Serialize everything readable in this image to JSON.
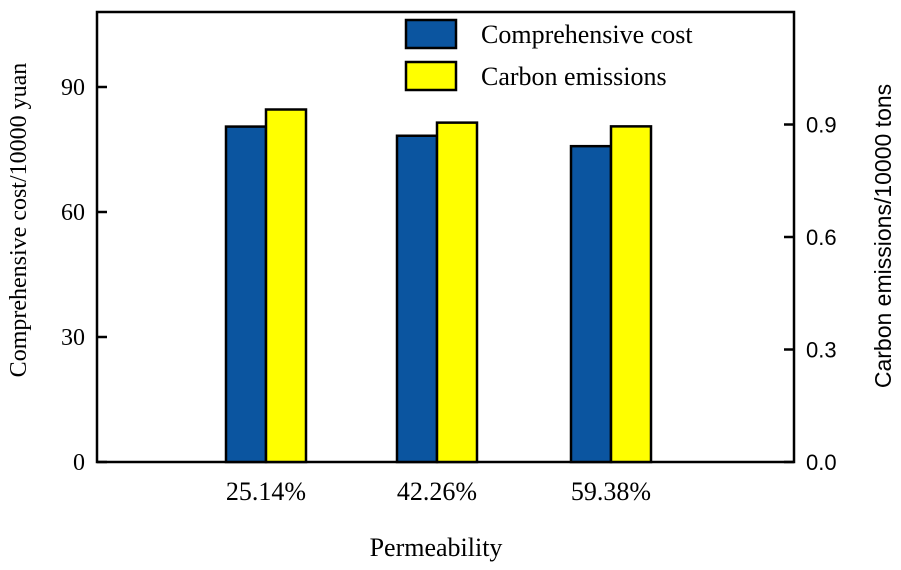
{
  "chart_data": {
    "type": "bar",
    "categories": [
      "25.14%",
      "42.26%",
      "59.38%"
    ],
    "xlabel": "Permeability",
    "ylabel_left": "Comprehensive cost/10000 yuan",
    "ylabel_right": "Carbon emissions/10000 tons",
    "ylim_left": [
      0,
      108
    ],
    "ylim_right": [
      0.0,
      1.2
    ],
    "yticks_left": [
      "0",
      "30",
      "60",
      "90"
    ],
    "yticks_right": [
      "0.0",
      "0.3",
      "0.6",
      "0.9"
    ],
    "yticks_left_values": [
      0,
      30,
      60,
      90
    ],
    "yticks_right_values": [
      0,
      0.3,
      0.6,
      0.9
    ],
    "legend_position": "top-right",
    "grid": false,
    "series": [
      {
        "name": "Comprehensive cost",
        "axis": "left",
        "color": "#0b55a0",
        "values": [
          80.5,
          78.3,
          75.8
        ]
      },
      {
        "name": "Carbon emissions",
        "axis": "right",
        "color": "#ffff00",
        "values": [
          0.94,
          0.905,
          0.895
        ]
      }
    ]
  }
}
